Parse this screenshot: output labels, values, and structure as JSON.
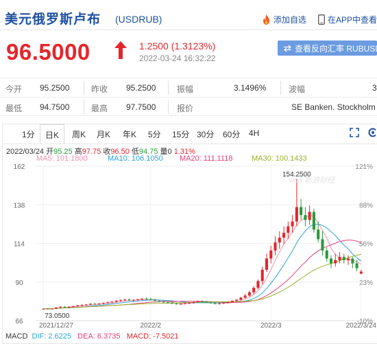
{
  "header": {
    "title": "美元俄罗斯卢布",
    "code": "(USDRUB)",
    "add_favorite": "添加自选",
    "view_in_app": "在APP中查看",
    "flame_icon": "flame-icon",
    "phone_icon": "phone-icon"
  },
  "quote_summary": {
    "price": "96.5000",
    "change": "1.2500 (1.3123%)",
    "datetime": "2022-03-24 16:32:22",
    "reverse_rate_button": "查看反向汇率 RUBUSD",
    "color_up": "#e4262b"
  },
  "quote_table": {
    "row1": [
      {
        "label": "今开",
        "value": "95.2500"
      },
      {
        "label": "昨收",
        "value": "95.2500"
      },
      {
        "label": "振幅",
        "value": "3.1496%"
      },
      {
        "label": "波幅",
        "value": "3"
      }
    ],
    "row2": [
      {
        "label": "最低",
        "value": "94.7500"
      },
      {
        "label": "最高",
        "value": "97.7500"
      },
      {
        "label": "报价",
        "value": "SE Banken. Stockholm"
      }
    ]
  },
  "chart_tabs": [
    "1分",
    "日K",
    "周K",
    "月K",
    "年K",
    "5分",
    "15分",
    "30分",
    "60分",
    "4H"
  ],
  "active_tab": "日K",
  "ohlc": {
    "date": "2022/03/24",
    "open_label": "开",
    "open": "95.25",
    "high_label": "高",
    "high": "97.75",
    "close_label": "收",
    "close": "96.50",
    "low_label": "低",
    "low": "94.75",
    "volume_label": "量",
    "volume": "0",
    "pct": "1.31%"
  },
  "ma": [
    {
      "label": "MA5: 101.1800",
      "color": "#f08fb0"
    },
    {
      "label": "MA10: 106.1050",
      "color": "#2aa3d8"
    },
    {
      "label": "MA20: 111.1118",
      "color": "#e0407a"
    },
    {
      "label": "MA30: 100.1433",
      "color": "#9ab028"
    }
  ],
  "macd": {
    "label": "MACD",
    "dif": "DIF: 2.6225",
    "dea": "DEA: 6.3735",
    "macd": "MACD: -7.5021"
  },
  "watermark": "sina 新浪财经",
  "chart_data": {
    "type": "candlestick",
    "y_ticks_left": [
      "162",
      "138",
      "114",
      "90",
      "66"
    ],
    "y_ticks_right": [
      "121%",
      "88%",
      "56%",
      "23%",
      "-10%"
    ],
    "x_ticks": [
      "2021/12/27",
      "2022/2",
      "2022/3",
      "2022/3/24"
    ],
    "annotations": {
      "max": "154.2500",
      "min": "73.0500"
    },
    "ylim": [
      66,
      162
    ],
    "candles": [
      [
        73.2,
        73.6,
        72.9,
        73.4
      ],
      [
        73.4,
        73.8,
        73.1,
        73.3
      ],
      [
        73.3,
        73.7,
        73.0,
        73.5
      ],
      [
        73.5,
        74.4,
        73.2,
        74.2
      ],
      [
        74.2,
        75.0,
        73.8,
        74.6
      ],
      [
        74.6,
        75.1,
        74.0,
        74.3
      ],
      [
        74.3,
        74.9,
        73.9,
        74.7
      ],
      [
        74.7,
        75.3,
        74.2,
        75.0
      ],
      [
        75.0,
        75.8,
        74.6,
        75.5
      ],
      [
        75.5,
        76.2,
        75.0,
        75.8
      ],
      [
        75.8,
        76.4,
        75.2,
        76.0
      ],
      [
        76.0,
        76.8,
        75.6,
        76.5
      ],
      [
        76.5,
        77.0,
        75.9,
        76.2
      ],
      [
        76.2,
        76.9,
        75.8,
        76.6
      ],
      [
        76.6,
        77.3,
        76.1,
        77.0
      ],
      [
        77.0,
        77.8,
        76.5,
        77.4
      ],
      [
        77.4,
        78.2,
        76.9,
        77.8
      ],
      [
        77.8,
        78.8,
        77.2,
        78.4
      ],
      [
        78.4,
        79.2,
        77.8,
        78.7
      ],
      [
        78.7,
        79.6,
        78.0,
        79.1
      ],
      [
        79.1,
        79.8,
        78.3,
        78.6
      ],
      [
        78.6,
        79.3,
        77.9,
        78.9
      ],
      [
        78.9,
        79.6,
        78.2,
        79.2
      ],
      [
        79.2,
        80.1,
        78.7,
        79.6
      ],
      [
        79.6,
        80.4,
        78.9,
        79.4
      ],
      [
        79.4,
        80.0,
        78.6,
        78.9
      ],
      [
        78.9,
        79.5,
        78.1,
        78.3
      ],
      [
        78.3,
        78.9,
        77.5,
        77.8
      ],
      [
        77.8,
        78.4,
        77.0,
        77.4
      ],
      [
        77.4,
        78.0,
        76.7,
        77.1
      ],
      [
        77.1,
        77.6,
        76.3,
        76.6
      ],
      [
        76.6,
        77.2,
        75.9,
        76.2
      ],
      [
        76.2,
        76.9,
        75.7,
        76.5
      ],
      [
        76.5,
        77.3,
        76.0,
        76.9
      ],
      [
        76.9,
        77.6,
        76.3,
        77.2
      ],
      [
        77.2,
        77.9,
        76.6,
        77.5
      ],
      [
        77.5,
        78.4,
        77.0,
        78.0
      ],
      [
        78.0,
        78.7,
        77.3,
        77.6
      ],
      [
        77.6,
        78.2,
        76.9,
        77.3
      ],
      [
        77.3,
        77.9,
        76.6,
        76.8
      ],
      [
        76.8,
        77.4,
        76.1,
        76.5
      ],
      [
        76.5,
        77.2,
        75.9,
        76.9
      ],
      [
        76.9,
        77.6,
        76.2,
        77.1
      ],
      [
        77.1,
        77.9,
        76.6,
        77.6
      ],
      [
        77.6,
        78.6,
        77.1,
        78.3
      ],
      [
        78.3,
        79.4,
        77.8,
        79.0
      ],
      [
        79.0,
        80.8,
        78.5,
        80.3
      ],
      [
        80.3,
        82.6,
        79.6,
        81.6
      ],
      [
        81.6,
        84.6,
        80.9,
        83.6
      ],
      [
        83.6,
        87.4,
        82.4,
        86.4
      ],
      [
        86.4,
        91.6,
        85.4,
        90.6
      ],
      [
        90.6,
        99.6,
        88.6,
        97.6
      ],
      [
        97.6,
        107.6,
        96.4,
        104.6
      ],
      [
        104.6,
        112.6,
        101.6,
        109.6
      ],
      [
        109.6,
        118.4,
        106.6,
        114.6
      ],
      [
        114.6,
        121.6,
        110.6,
        117.6
      ],
      [
        117.6,
        124.6,
        113.6,
        120.6
      ],
      [
        120.6,
        127.6,
        116.6,
        124.6
      ],
      [
        124.6,
        131.6,
        120.6,
        127.6
      ],
      [
        127.6,
        154.25,
        124.6,
        136.6
      ],
      [
        136.6,
        141.6,
        128.6,
        131.6
      ],
      [
        131.6,
        136.6,
        124.6,
        128.6
      ],
      [
        128.6,
        137.6,
        125.6,
        133.6
      ],
      [
        133.6,
        135.6,
        120.6,
        122.6
      ],
      [
        122.6,
        127.6,
        114.6,
        116.6
      ],
      [
        116.6,
        121.6,
        106.6,
        109.6
      ],
      [
        109.6,
        111.6,
        102.6,
        104.6
      ],
      [
        104.6,
        106.6,
        98.6,
        101.6
      ],
      [
        101.6,
        107.6,
        99.6,
        103.6
      ],
      [
        103.6,
        108.6,
        101.6,
        105.6
      ],
      [
        105.6,
        107.6,
        101.6,
        103.6
      ],
      [
        103.6,
        106.6,
        100.6,
        104.6
      ],
      [
        104.6,
        105.6,
        98.6,
        101.6
      ],
      [
        101.6,
        103.6,
        96.6,
        98.6
      ],
      [
        95.25,
        97.75,
        94.75,
        96.5
      ]
    ]
  }
}
